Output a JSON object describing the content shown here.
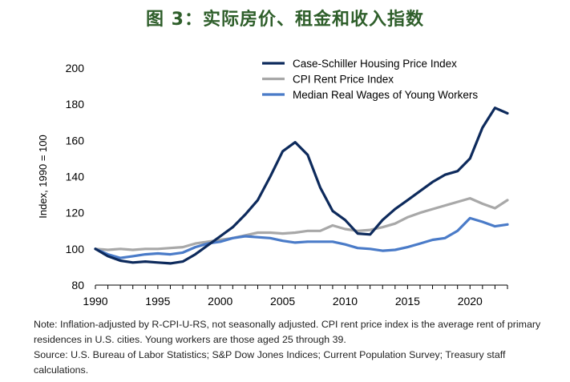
{
  "title": "图 3：实际房价、租金和收入指数",
  "notes": {
    "note": "Note: Inflation-adjusted by R-CPI-U-RS, not seasonally adjusted. CPI rent price index is the average rent of primary residences in U.S. cities. Young workers are those aged 25 through 39.",
    "source": "Source: U.S. Bureau of Labor Statistics; S&P Dow Jones Indices; Current Population Survey; Treasury staff calculations."
  },
  "chart_data": {
    "type": "line",
    "ylabel": "Index, 1990 = 100",
    "xlabel": "",
    "xlim": [
      1990,
      2023
    ],
    "ylim": [
      80,
      200
    ],
    "xticks": [
      1990,
      1995,
      2000,
      2005,
      2010,
      2015,
      2020
    ],
    "yticks": [
      80,
      100,
      120,
      140,
      160,
      180,
      200
    ],
    "grid": false,
    "legend_position": "top-right",
    "x": [
      1990,
      1991,
      1992,
      1993,
      1994,
      1995,
      1996,
      1997,
      1998,
      1999,
      2000,
      2001,
      2002,
      2003,
      2004,
      2005,
      2006,
      2007,
      2008,
      2009,
      2010,
      2011,
      2012,
      2013,
      2014,
      2015,
      2016,
      2017,
      2018,
      2019,
      2020,
      2021,
      2022,
      2023
    ],
    "series": [
      {
        "name": "Case-Schiller Housing Price Index",
        "color": "#0d2a5c",
        "values": [
          100,
          96,
          93.5,
          92.5,
          93,
          92.5,
          92,
          93,
          97,
          102,
          107,
          112,
          119,
          127,
          140,
          154,
          159,
          152,
          134,
          121,
          116,
          108.5,
          108,
          116,
          122,
          127,
          132,
          137,
          141,
          143,
          150,
          167,
          178,
          175
        ]
      },
      {
        "name": "CPI Rent Price Index",
        "color": "#a8a8a8",
        "values": [
          100,
          99.5,
          100,
          99.5,
          100,
          100,
          100.5,
          101,
          103,
          104,
          105,
          106,
          107.5,
          109,
          109,
          108.5,
          109,
          110,
          110,
          113,
          111,
          110,
          110.5,
          112,
          114,
          117.5,
          120,
          122,
          124,
          126,
          128,
          125,
          122.5,
          127
        ]
      },
      {
        "name": "Median Real Wages of Young Workers",
        "color": "#4a7bc8",
        "values": [
          100,
          97,
          95,
          96,
          97,
          97.5,
          97,
          98,
          101,
          103,
          104,
          106,
          107,
          106.5,
          106,
          104.5,
          103.5,
          104,
          104,
          104,
          102.5,
          100.5,
          100,
          99,
          99.5,
          101,
          103,
          105,
          106,
          110,
          117,
          115,
          112.5,
          113.5
        ]
      }
    ]
  }
}
